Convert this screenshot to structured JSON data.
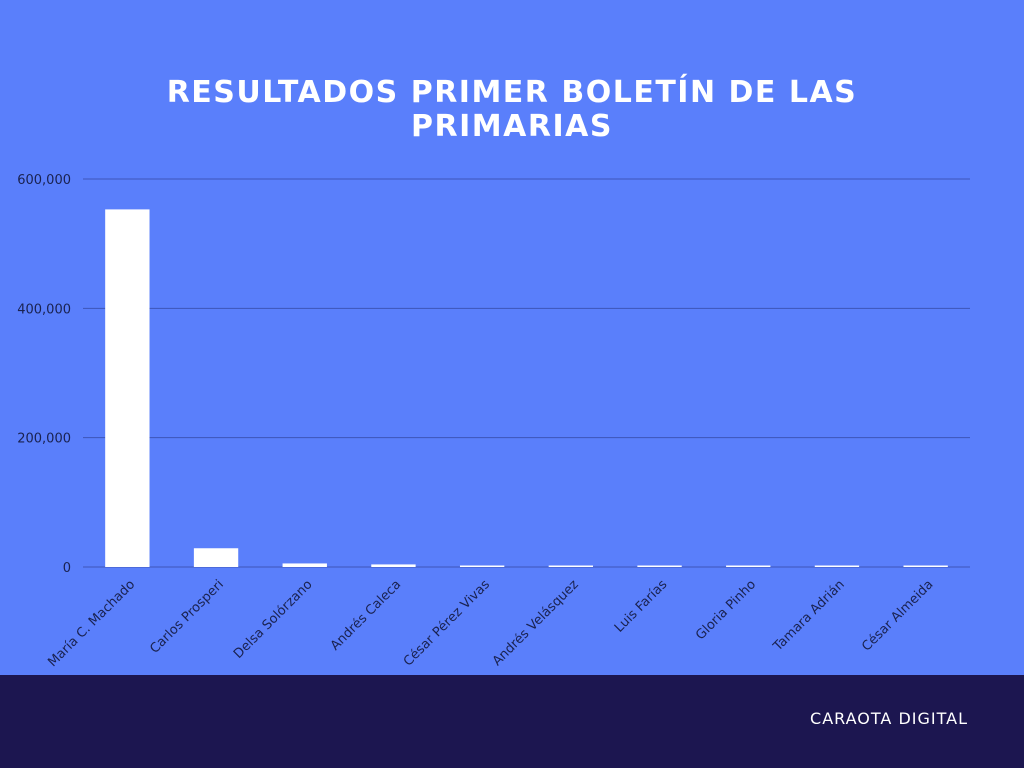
{
  "colors": {
    "background": "#5a7ffb",
    "bar": "#ffffff",
    "gridline": "#3d55b8",
    "axis_text": "#1a2250",
    "footer": "#1c1650",
    "title": "#ffffff"
  },
  "footer": {
    "brand": "CARAOTA DIGITAL"
  },
  "chart_data": {
    "type": "bar",
    "title": "RESULTADOS PRIMER BOLETÍN DE LAS PRIMARIAS",
    "xlabel": "",
    "ylabel": "",
    "categories": [
      "María C. Machado",
      "Carlos Prosperi",
      "Delsa Solórzano",
      "Andrés Caleca",
      "César Pérez Vivas",
      "Andrés Velásquez",
      "Luis Farías",
      "Gloria Pinho",
      "Tamara Adrián",
      "César Almeida"
    ],
    "values": [
      553000,
      29000,
      5500,
      4000,
      1500,
      1000,
      800,
      600,
      500,
      400
    ],
    "ylim": [
      0,
      600000
    ],
    "yticks": [
      0,
      200000,
      400000,
      600000
    ],
    "ytick_labels": [
      "0",
      "200,000",
      "400,000",
      "600,000"
    ],
    "grid": true,
    "legend": "none"
  }
}
